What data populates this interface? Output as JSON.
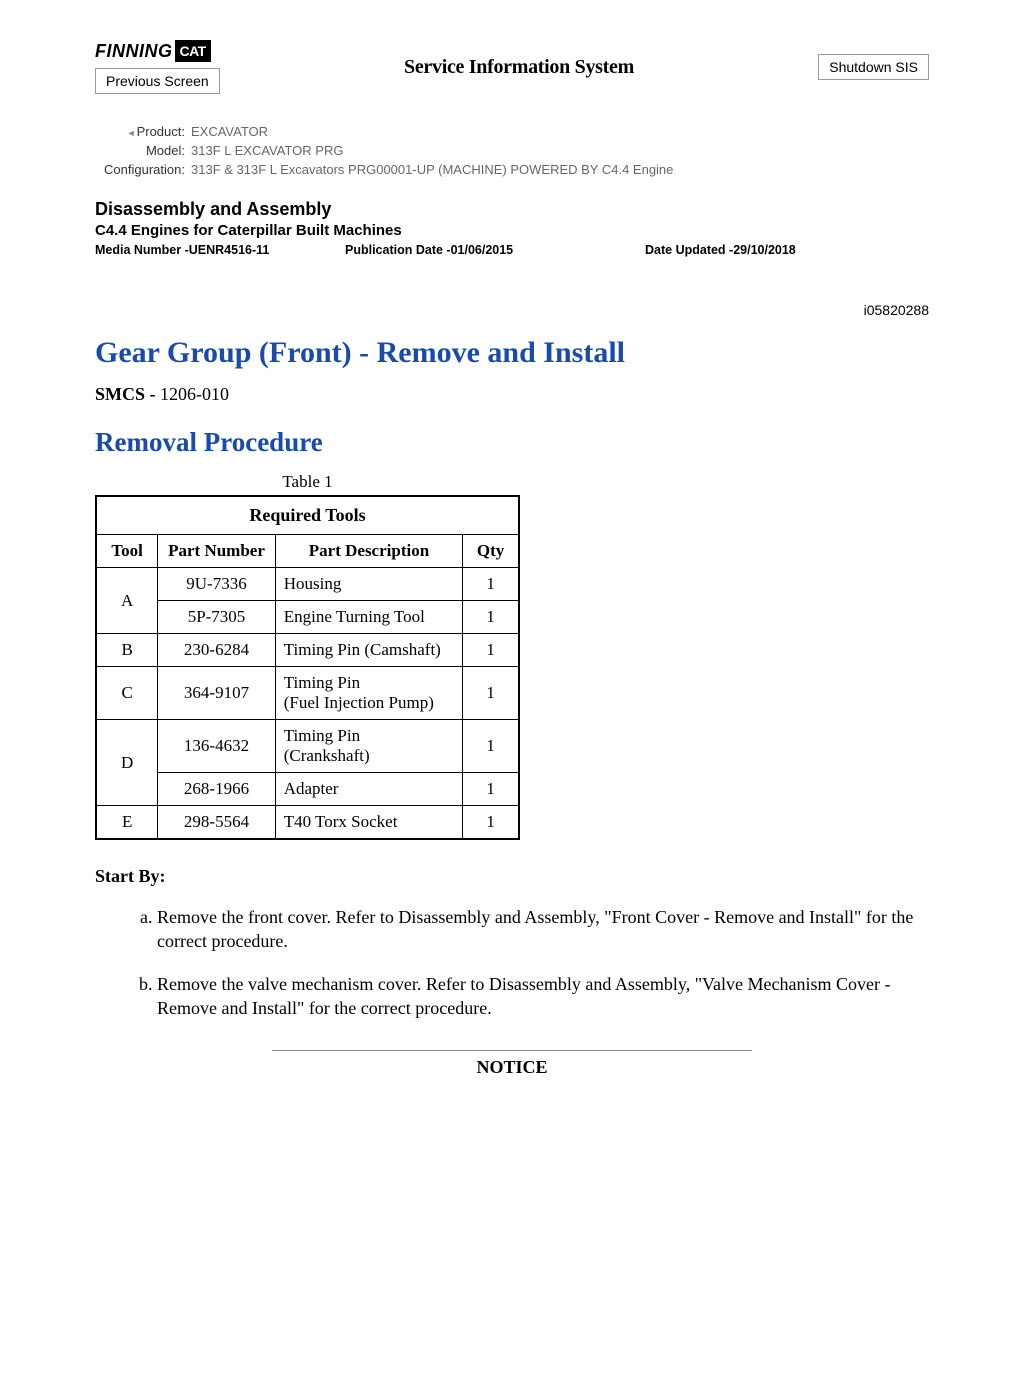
{
  "header": {
    "logo_text_1": "FINNING",
    "logo_text_2": "CAT",
    "system_title": "Service Information System",
    "shutdown_btn": "Shutdown SIS",
    "prev_btn": "Previous Screen"
  },
  "meta": {
    "product_label": "Product:",
    "product_value": "EXCAVATOR",
    "model_label": "Model:",
    "model_value": "313F L EXCAVATOR PRG",
    "config_label": "Configuration:",
    "config_value": "313F & 313F L Excavators PRG00001-UP (MACHINE) POWERED BY C4.4 Engine"
  },
  "section": {
    "title": "Disassembly and Assembly",
    "subtitle": "C4.4 Engines for Caterpillar Built Machines",
    "media": "Media Number -UENR4516-11",
    "pubdate": "Publication Date -01/06/2015",
    "updated": "Date Updated -29/10/2018"
  },
  "doc_id": "i05820288",
  "page_title": "Gear Group (Front) - Remove and Install",
  "smcs_label": "SMCS - ",
  "smcs_value": "1206-010",
  "proc_title": "Removal Procedure",
  "table": {
    "caption": "Table 1",
    "header_main": "Required Tools",
    "col_tool": "Tool",
    "col_part": "Part Number",
    "col_desc": "Part Description",
    "col_qty": "Qty",
    "rows": {
      "a_part1": "9U-7336",
      "a_desc1": "Housing",
      "a_qty1": "1",
      "a_part2": "5P-7305",
      "a_desc2": "Engine Turning Tool",
      "a_qty2": "1",
      "b_part": "230-6284",
      "b_desc": "Timing Pin (Camshaft)",
      "b_qty": "1",
      "c_part": "364-9107",
      "c_desc": "Timing Pin\n(Fuel Injection Pump)",
      "c_qty": "1",
      "d_part1": "136-4632",
      "d_desc1": "Timing Pin\n(Crankshaft)",
      "d_qty1": "1",
      "d_part2": "268-1966",
      "d_desc2": "Adapter",
      "d_qty2": "1",
      "e_part": "298-5564",
      "e_desc": "T40 Torx Socket",
      "e_qty": "1",
      "tool_a": "A",
      "tool_b": "B",
      "tool_c": "C",
      "tool_d": "D",
      "tool_e": "E"
    }
  },
  "start_by": "Start By:",
  "steps": {
    "a": "Remove the front cover. Refer to Disassembly and Assembly, \"Front Cover - Remove and Install\" for the correct procedure.",
    "b": "Remove the valve mechanism cover. Refer to Disassembly and Assembly, \"Valve Mechanism Cover - Remove and Install\" for the correct procedure."
  },
  "notice": "NOTICE"
}
